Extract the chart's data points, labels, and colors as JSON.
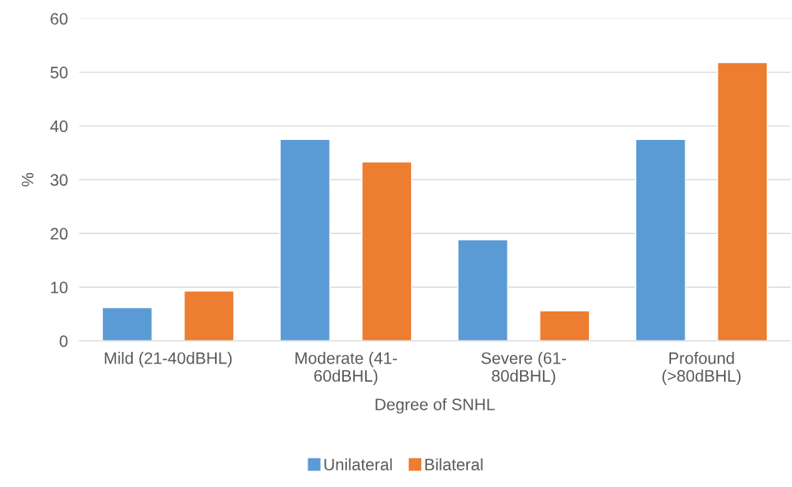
{
  "chart_data": {
    "type": "bar",
    "xlabel": "Degree of SNHL",
    "ylabel": "%",
    "categories": [
      "Mild (21-40dBHL)",
      "Moderate (41-\n60dBHL)",
      "Severe (61-\n80dBHL)",
      "Profound\n(>80dBHL)"
    ],
    "series": [
      {
        "name": "Unilateral",
        "color": "#5b9bd5",
        "values": [
          6.2,
          37.5,
          18.8,
          37.5
        ]
      },
      {
        "name": "Bilateral",
        "color": "#ed7d31",
        "values": [
          9.3,
          33.3,
          5.6,
          51.8
        ]
      }
    ],
    "ylim": [
      0,
      60
    ],
    "yticks": [
      0,
      10,
      20,
      30,
      40,
      50,
      60
    ],
    "grid": "y",
    "legend": "bottom"
  }
}
